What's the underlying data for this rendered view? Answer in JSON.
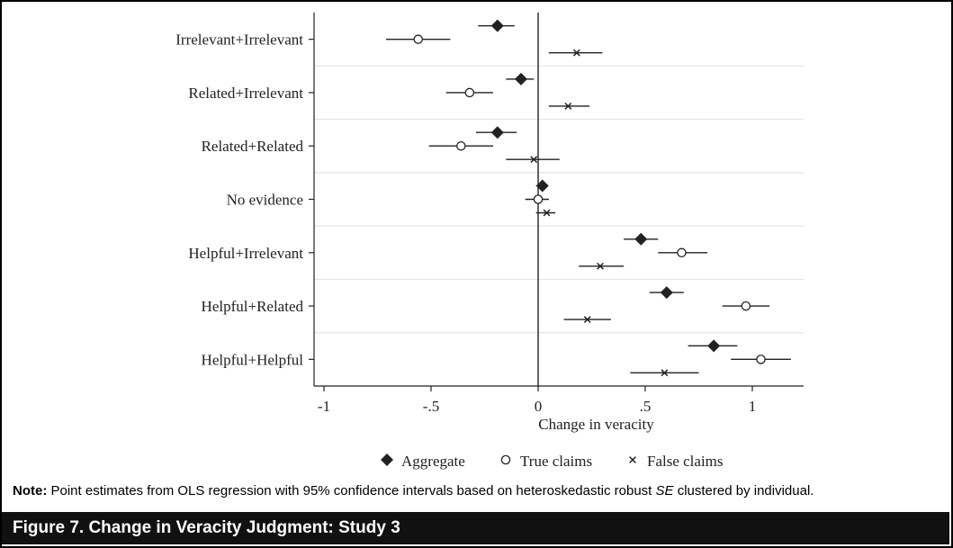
{
  "chart_data": {
    "type": "scatter",
    "xlabel": "Change in veracity",
    "xlim": [
      -1,
      1.25
    ],
    "x_ticks": [
      -1,
      -0.5,
      0,
      0.5,
      1
    ],
    "x_tick_labels": [
      "-1",
      "-.5",
      "0",
      ".5",
      "1"
    ],
    "reference_line_x": 0,
    "categories": [
      "Irrelevant+Irrelevant",
      "Related+Irrelevant",
      "Related+Related",
      "No evidence",
      "Helpful+Irrelevant",
      "Helpful+Related",
      "Helpful+Helpful"
    ],
    "series": [
      {
        "name": "Aggregate",
        "marker": "diamond",
        "values": [
          -0.19,
          -0.08,
          -0.19,
          0.02,
          0.48,
          0.6,
          0.82
        ],
        "ci_low": [
          -0.28,
          -0.15,
          -0.29,
          -0.01,
          0.4,
          0.52,
          0.7
        ],
        "ci_high": [
          -0.11,
          -0.02,
          -0.1,
          0.04,
          0.56,
          0.68,
          0.93
        ]
      },
      {
        "name": "True claims",
        "marker": "circle",
        "values": [
          -0.56,
          -0.32,
          -0.36,
          0.0,
          0.67,
          0.97,
          1.04
        ],
        "ci_low": [
          -0.71,
          -0.43,
          -0.51,
          -0.06,
          0.56,
          0.86,
          0.9
        ],
        "ci_high": [
          -0.41,
          -0.21,
          -0.21,
          0.05,
          0.79,
          1.08,
          1.18
        ]
      },
      {
        "name": "False claims",
        "marker": "x",
        "values": [
          0.18,
          0.14,
          -0.02,
          0.04,
          0.29,
          0.23,
          0.59
        ],
        "ci_low": [
          0.05,
          0.05,
          -0.15,
          -0.01,
          0.19,
          0.12,
          0.43
        ],
        "ci_high": [
          0.3,
          0.24,
          0.1,
          0.08,
          0.4,
          0.34,
          0.75
        ]
      }
    ],
    "legend_position": "bottom",
    "grid": "horizontal separators between groups"
  },
  "note": {
    "label": "Note:",
    "text_before": " Point estimates from OLS regression with 95% confidence intervals based on heteroskedastic robust ",
    "italic": "SE",
    "text_after": " clustered by individual."
  },
  "caption": "Figure 7. Change in Veracity Judgment: Study 3",
  "colors": {
    "ink": "#222222",
    "grid": "#e6e6e6",
    "caption_bg": "#111111"
  }
}
